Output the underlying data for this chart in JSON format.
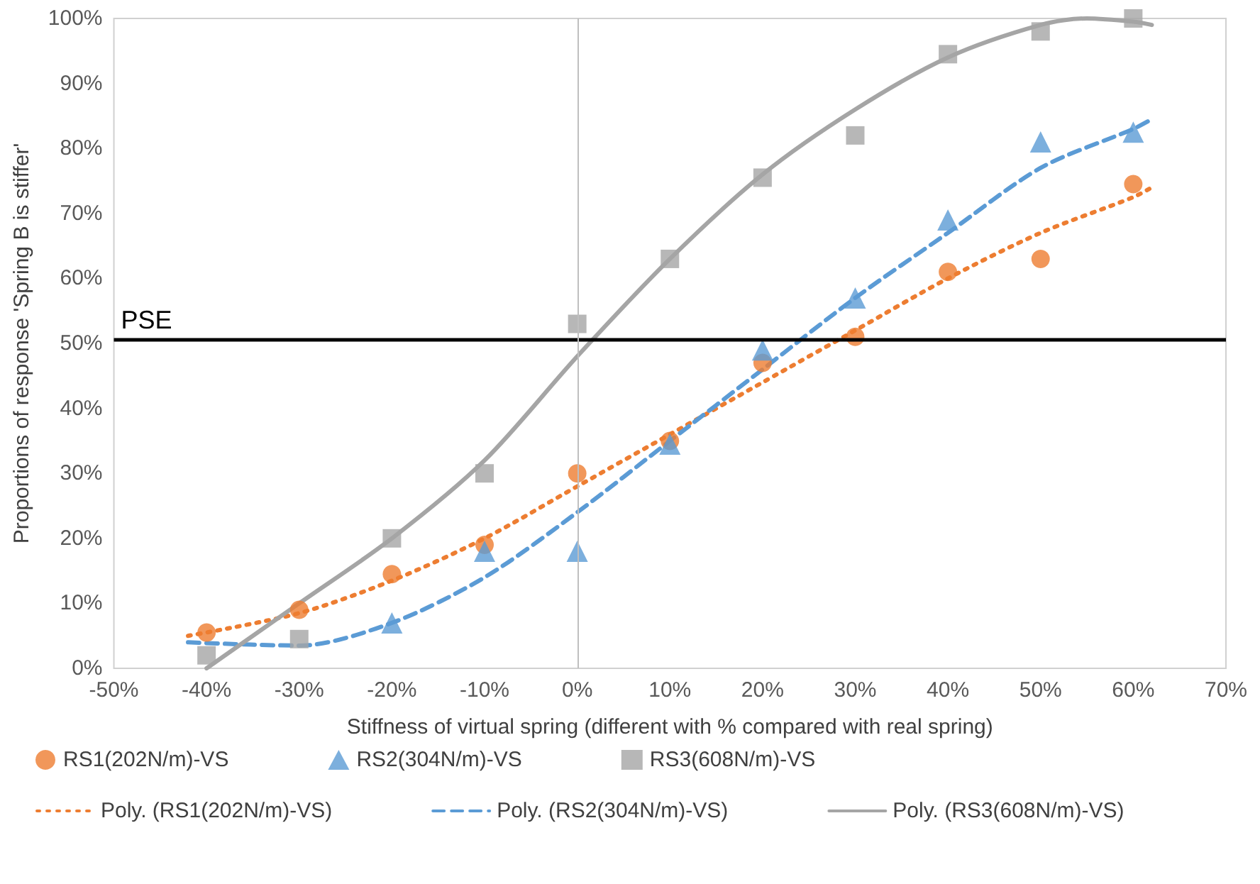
{
  "chart_data": {
    "type": "scatter",
    "xlabel": "Stiffness of virtual spring (different with % compared with real spring)",
    "ylabel": "Proportions of response 'Spring B is stiffer'",
    "x": [
      -40,
      -30,
      -20,
      -10,
      0,
      10,
      20,
      30,
      40,
      50,
      60
    ],
    "series": [
      {
        "name": "RS1(202N/m)-VS",
        "color": "#ed7d31",
        "marker": "circle",
        "values": [
          5.5,
          9,
          14.5,
          19,
          30,
          35,
          47,
          51,
          61,
          63,
          74.5
        ]
      },
      {
        "name": "RS2(304N/m)-VS",
        "color": "#5b9bd5",
        "marker": "triangle",
        "values": [
          null,
          null,
          7,
          18,
          18,
          34.5,
          49,
          57,
          69,
          81,
          82.5
        ]
      },
      {
        "name": "RS3(608N/m)-VS",
        "color": "#a5a5a5",
        "marker": "square",
        "values": [
          2,
          4.5,
          20,
          30,
          53,
          63,
          75.5,
          82,
          94.5,
          98,
          100
        ]
      },
      {
        "name": "Poly. (RS1(202N/m)-VS)",
        "type": "line",
        "color": "#ed7d31",
        "marker": "none",
        "line_style": "dotted",
        "x": [
          -42,
          -30,
          -20,
          -10,
          0,
          10,
          20,
          30,
          40,
          50,
          60,
          62
        ],
        "values": [
          5,
          8.5,
          13.5,
          20,
          28,
          36,
          44,
          52,
          60,
          67,
          72.5,
          74
        ]
      },
      {
        "name": "Poly. (RS2(304N/m)-VS)",
        "type": "line",
        "color": "#5b9bd5",
        "marker": "none",
        "line_style": "dashed",
        "x": [
          -42,
          -30,
          -20,
          -10,
          0,
          10,
          20,
          30,
          40,
          50,
          60,
          62
        ],
        "values": [
          4,
          3.5,
          7,
          14,
          24,
          35,
          46,
          57,
          67,
          77,
          83,
          84.5
        ]
      },
      {
        "name": "Poly. (RS3(608N/m)-VS)",
        "type": "line",
        "color": "#a5a5a5",
        "marker": "none",
        "line_style": "solid",
        "x": [
          -40,
          -30,
          -20,
          -10,
          0,
          10,
          20,
          30,
          40,
          50,
          55,
          60,
          62
        ],
        "values": [
          0,
          10,
          20,
          32,
          48,
          63,
          76,
          86,
          94,
          99,
          100,
          99.5,
          99
        ]
      }
    ],
    "xlim": [
      -50,
      70
    ],
    "xticks": [
      {
        "value": -50,
        "label": "-50%"
      },
      {
        "value": -40,
        "label": "-40%"
      },
      {
        "value": -30,
        "label": "-30%"
      },
      {
        "value": -20,
        "label": "-20%"
      },
      {
        "value": -10,
        "label": "-10%"
      },
      {
        "value": 0,
        "label": "0%"
      },
      {
        "value": 10,
        "label": "10%"
      },
      {
        "value": 20,
        "label": "20%"
      },
      {
        "value": 30,
        "label": "30%"
      },
      {
        "value": 40,
        "label": "40%"
      },
      {
        "value": 50,
        "label": "50%"
      },
      {
        "value": 60,
        "label": "60%"
      },
      {
        "value": 70,
        "label": "70%"
      }
    ],
    "ylim": [
      0,
      100
    ],
    "yticks": [
      {
        "value": 0,
        "label": "0%"
      },
      {
        "value": 10,
        "label": "10%"
      },
      {
        "value": 20,
        "label": "20%"
      },
      {
        "value": 30,
        "label": "30%"
      },
      {
        "value": 40,
        "label": "40%"
      },
      {
        "value": 50,
        "label": "50%"
      },
      {
        "value": 60,
        "label": "60%"
      },
      {
        "value": 70,
        "label": "70%"
      },
      {
        "value": 80,
        "label": "80%"
      },
      {
        "value": 90,
        "label": "90%"
      },
      {
        "value": 100,
        "label": "100%"
      }
    ],
    "ref_lines": [
      {
        "axis": "y",
        "value": 50.5,
        "label": "PSE",
        "color": "#000000",
        "line_style": "solid"
      },
      {
        "axis": "x",
        "value": 0,
        "label": null,
        "color": "#bfbfbf",
        "line_style": "solid"
      }
    ],
    "grid": false,
    "legend": "bottom"
  }
}
